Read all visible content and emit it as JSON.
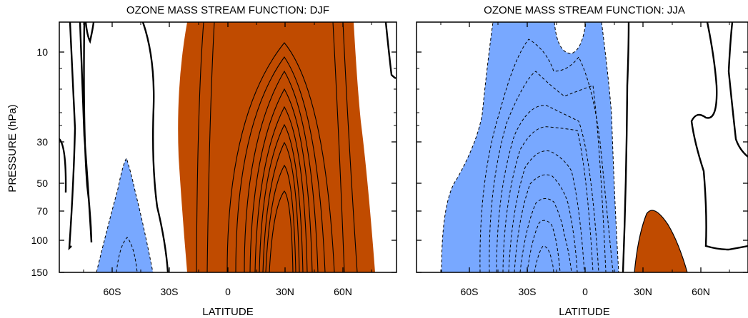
{
  "colors": {
    "positive_fill": "#c04b00",
    "negative_fill": "#78a8ff",
    "line": "#000000"
  },
  "chart_data": [
    {
      "type": "contour",
      "title": "OZONE MASS STREAM FUNCTION: DJF",
      "xlabel": "LATITUDE",
      "ylabel": "PRESSURE (hPa)",
      "x_tick_labels": [
        "60S",
        "30S",
        "0",
        "30N",
        "60N"
      ],
      "y_tick_labels": [
        "10",
        "30",
        "50",
        "70",
        "100",
        "150"
      ],
      "y_scale": "log",
      "filled_regions": [
        {
          "sign": "positive",
          "lat_range": [
            -42,
            75
          ],
          "description_level": "wide positive cell centred near 28N"
        },
        {
          "sign": "negative",
          "lat_range": [
            -68,
            -40
          ],
          "description_level": "small negative cell near 53S below 40 hPa"
        }
      ],
      "grid": false
    },
    {
      "type": "contour",
      "title": "OZONE MASS STREAM FUNCTION: JJA",
      "xlabel": "LATITUDE",
      "ylabel": "",
      "x_tick_labels": [
        "60S",
        "30S",
        "0",
        "30N",
        "60N"
      ],
      "y_tick_labels": [],
      "y_scale": "log",
      "filled_regions": [
        {
          "sign": "negative",
          "lat_range": [
            -72,
            16
          ],
          "description_level": "wide negative cell centred near 25S"
        },
        {
          "sign": "positive",
          "lat_range": [
            22,
            50
          ],
          "description_level": "small positive cell near 35N below 70 hPa"
        }
      ],
      "grid": false
    }
  ]
}
